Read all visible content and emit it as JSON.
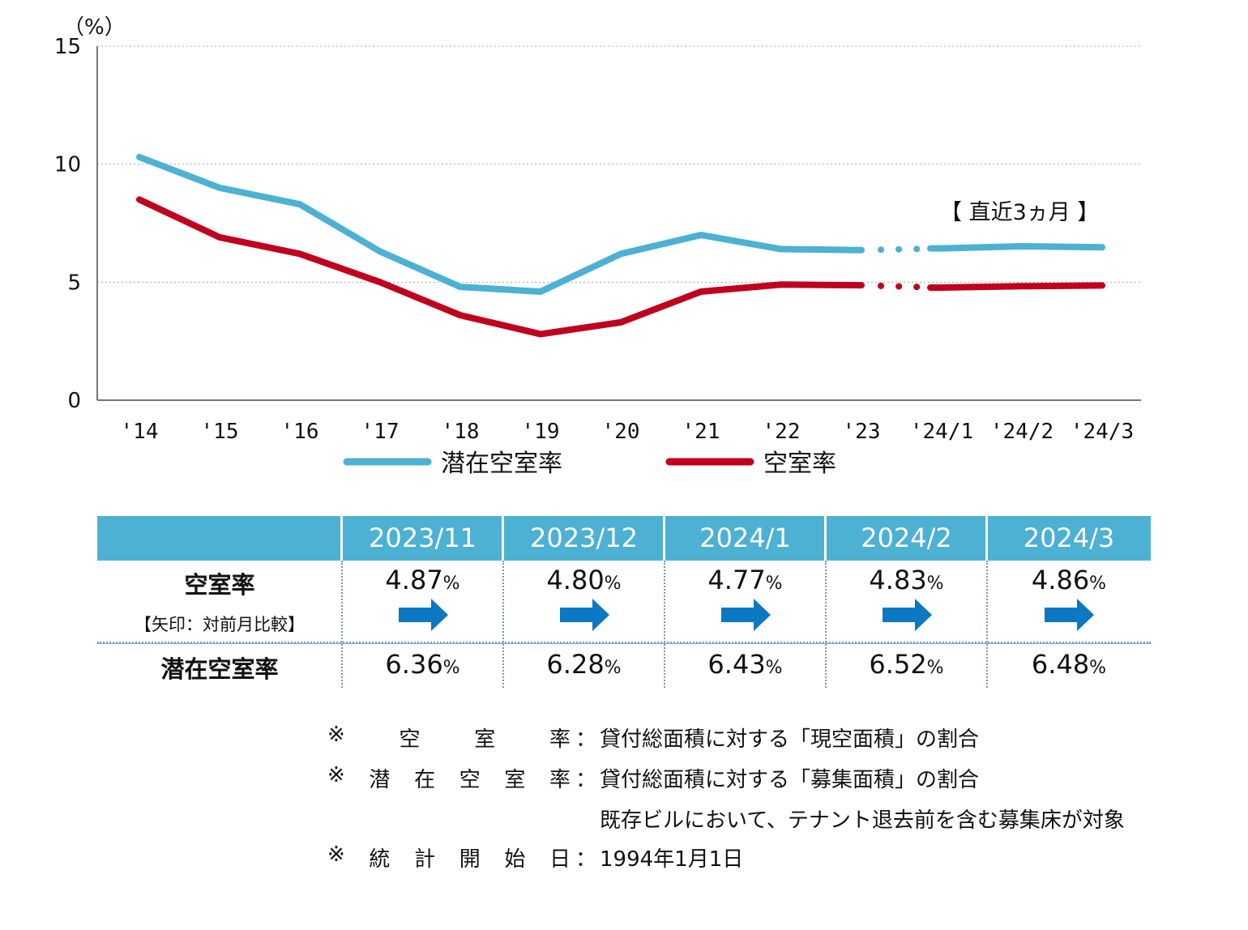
{
  "chart_data": {
    "type": "line",
    "y_unit_label": "（%）",
    "ylim": [
      0,
      15
    ],
    "yticks": [
      "0",
      "5",
      "10",
      "15"
    ],
    "categories": [
      "'14",
      "'15",
      "'16",
      "'17",
      "'18",
      "'19",
      "'20",
      "'21",
      "'22",
      "'23",
      "'24/1",
      "'24/2",
      "'24/3"
    ],
    "grid": "horizontal dotted",
    "annotation": "【 直近3ヵ月 】",
    "legend_placement": "bottom",
    "series": [
      {
        "name": "潜在空室率",
        "color": "#4cb1d3",
        "values": [
          10.3,
          9.0,
          8.3,
          6.3,
          4.8,
          4.6,
          6.2,
          7.0,
          6.4,
          6.36,
          6.43,
          6.52,
          6.48
        ]
      },
      {
        "name": "空室率",
        "color": "#c0001d",
        "values": [
          8.5,
          6.9,
          6.2,
          5.0,
          3.6,
          2.8,
          3.3,
          4.6,
          4.9,
          4.87,
          4.77,
          4.83,
          4.86
        ]
      }
    ]
  },
  "table": {
    "columns": [
      "2023/11",
      "2023/12",
      "2024/1",
      "2024/2",
      "2024/3"
    ],
    "row1_label": "空室率",
    "row1_sublabel": "【矢印：対前月比較】",
    "row1_values": [
      "4.87",
      "4.80",
      "4.77",
      "4.83",
      "4.86"
    ],
    "row2_label": "潜在空室率",
    "row2_values": [
      "6.36",
      "6.28",
      "6.43",
      "6.52",
      "6.48"
    ],
    "percent_sign": "%",
    "arrow_color": "#0a78c2",
    "arrow_direction": "right"
  },
  "notes": [
    {
      "prefix": "※",
      "key": [
        "空",
        "室",
        "率"
      ],
      "colon": "：",
      "value": "貸付総面積に対する「現空面積」の割合"
    },
    {
      "prefix": "※",
      "key": [
        "潜",
        "在",
        "空",
        "室",
        "率"
      ],
      "colon": "：",
      "value": "貸付総面積に対する「募集面積」の割合"
    },
    {
      "prefix": "",
      "key": [],
      "colon": "",
      "value": "既存ビルにおいて、テナント退去前を含む募集床が対象"
    },
    {
      "prefix": "※",
      "key": [
        "統",
        "計",
        "開",
        "始",
        "日"
      ],
      "colon": "：",
      "value": "1994年1月1日"
    }
  ]
}
